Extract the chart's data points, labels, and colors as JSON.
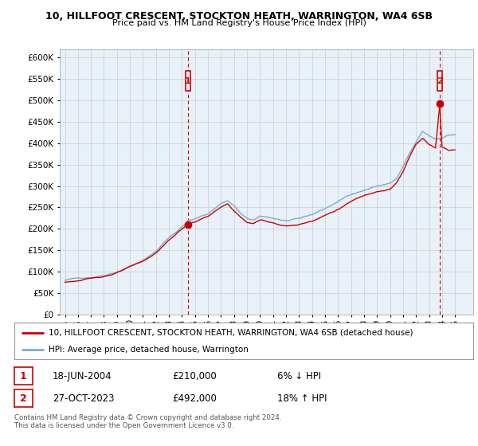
{
  "title1": "10, HILLFOOT CRESCENT, STOCKTON HEATH, WARRINGTON, WA4 6SB",
  "title2": "Price paid vs. HM Land Registry's House Price Index (HPI)",
  "ylim": [
    0,
    620000
  ],
  "yticks": [
    0,
    50000,
    100000,
    150000,
    200000,
    250000,
    300000,
    350000,
    400000,
    450000,
    500000,
    550000,
    600000
  ],
  "legend_label1": "10, HILLFOOT CRESCENT, STOCKTON HEATH, WARRINGTON, WA4 6SB (detached house)",
  "legend_label2": "HPI: Average price, detached house, Warrington",
  "annotation1_date": "18-JUN-2004",
  "annotation1_price": "£210,000",
  "annotation1_pct": "6% ↓ HPI",
  "annotation2_date": "27-OCT-2023",
  "annotation2_price": "£492,000",
  "annotation2_pct": "18% ↑ HPI",
  "footer": "Contains HM Land Registry data © Crown copyright and database right 2024.\nThis data is licensed under the Open Government Licence v3.0.",
  "line_color_red": "#cc0000",
  "line_color_blue": "#7aadcc",
  "grid_color": "#cccccc",
  "bg_color": "#ffffff",
  "chart_bg": "#e8f0f8",
  "sale1_x": 2004.46,
  "sale1_y": 210000,
  "sale2_x": 2023.82,
  "sale2_y": 492000,
  "xlim_left": 1994.6,
  "xlim_right": 2026.4
}
